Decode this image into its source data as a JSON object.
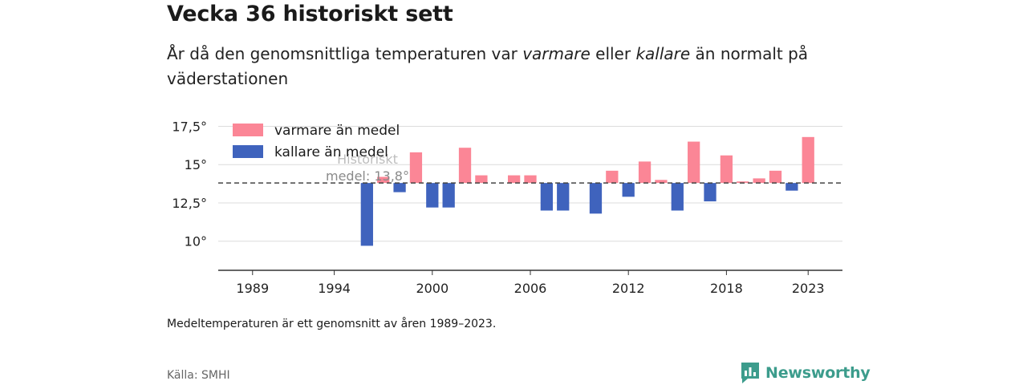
{
  "header": {
    "title": "Vecka 36 historiskt sett",
    "subtitle_prefix": "År då den genomsnittliga temperaturen var ",
    "subtitle_warm": "varmare",
    "subtitle_middle": " eller ",
    "subtitle_cold": "kallare",
    "subtitle_suffix": " än normalt på väderstationen"
  },
  "footer": {
    "note": "Medeltemperaturen är ett genomsnitt av åren 1989–2023.",
    "source": "Källa: SMHI",
    "brand": "Newsworthy"
  },
  "colors": {
    "warm": "#fb8696",
    "cold": "#3f63bd",
    "brand": "#3c9c8c"
  },
  "chart_data": {
    "type": "bar",
    "baseline": 13.8,
    "baseline_label_line1": "Historiskt",
    "baseline_label_line2": "medel: 13,8°",
    "ylim": [
      8.1,
      18.1
    ],
    "xlim": [
      1986.9,
      2025.1
    ],
    "y_ticks": [
      {
        "value": 10,
        "label": "10°"
      },
      {
        "value": 12.5,
        "label": "12,5°"
      },
      {
        "value": 15,
        "label": "15°"
      },
      {
        "value": 17.5,
        "label": "17,5°"
      }
    ],
    "x_ticks": [
      {
        "value": 1989,
        "label": "1989"
      },
      {
        "value": 1994,
        "label": "1994"
      },
      {
        "value": 2000,
        "label": "2000"
      },
      {
        "value": 2006,
        "label": "2006"
      },
      {
        "value": 2012,
        "label": "2012"
      },
      {
        "value": 2018,
        "label": "2018"
      },
      {
        "value": 2023,
        "label": "2023"
      }
    ],
    "legend": [
      {
        "name": "varmare än medel",
        "key": "warm"
      },
      {
        "name": "kallare än medel",
        "key": "cold"
      }
    ],
    "legend_position": "top-left",
    "grid": true,
    "x": [
      1996,
      1997,
      1998,
      1999,
      2000,
      2001,
      2002,
      2003,
      2005,
      2006,
      2007,
      2008,
      2010,
      2011,
      2012,
      2013,
      2014,
      2015,
      2016,
      2017,
      2018,
      2019,
      2020,
      2021,
      2022,
      2023
    ],
    "values": [
      9.7,
      14.2,
      13.2,
      15.8,
      12.2,
      12.2,
      16.1,
      14.3,
      14.3,
      14.3,
      12,
      12,
      11.8,
      14.6,
      12.9,
      15.2,
      14,
      12,
      16.5,
      12.6,
      15.6,
      13.9,
      14.1,
      14.6,
      13.3,
      16.8
    ]
  }
}
